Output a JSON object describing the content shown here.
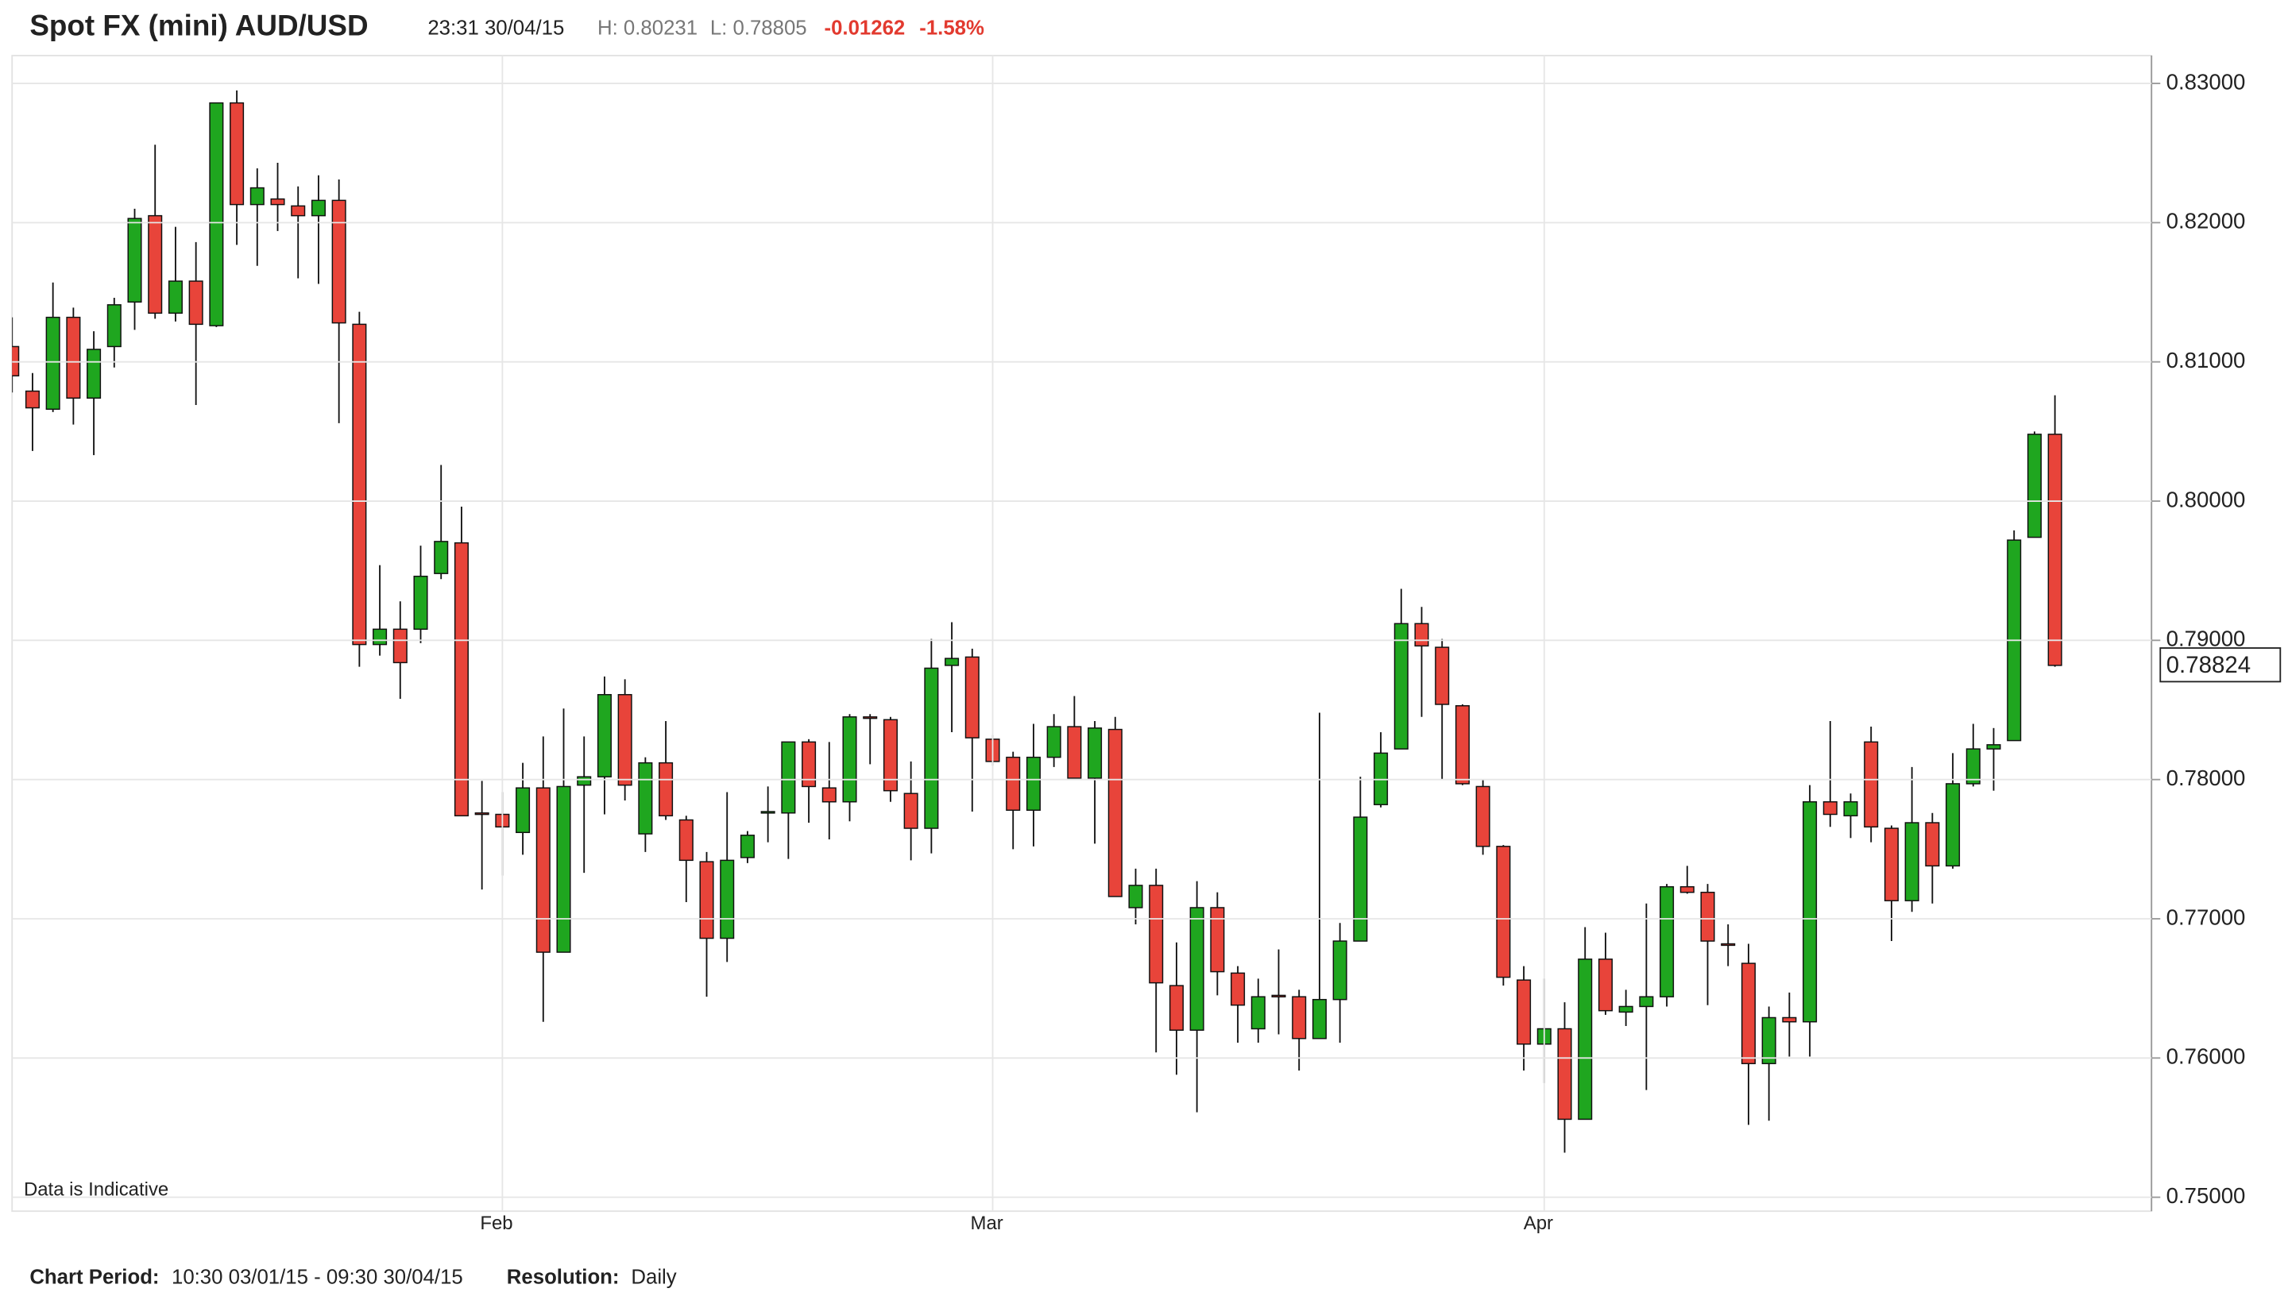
{
  "chart_data": {
    "type": "candlestick",
    "title": "Spot FX (mini) AUD/USD",
    "header": {
      "time": "23:31 30/04/15",
      "high": "H: 0.80231",
      "low": "L: 0.78805",
      "change": "-0.01262",
      "change_pct": "-1.58%"
    },
    "annotation": "Data is Indicative",
    "footer": {
      "period_label": "Chart Period:",
      "period": "10:30 03/01/15 - 09:30 30/04/15",
      "resolution_label": "Resolution:",
      "resolution": "Daily"
    },
    "categories": [
      null,
      null,
      null,
      null,
      null,
      null,
      null,
      null,
      null,
      null,
      null,
      null,
      null,
      null,
      null,
      null,
      null,
      null,
      null,
      null,
      null,
      null,
      null,
      null,
      "Feb",
      null,
      null,
      null,
      null,
      null,
      null,
      null,
      null,
      null,
      null,
      null,
      null,
      null,
      null,
      null,
      null,
      null,
      null,
      null,
      null,
      null,
      null,
      null,
      "Mar",
      null,
      null,
      null,
      null,
      null,
      null,
      null,
      null,
      null,
      null,
      null,
      null,
      null,
      null,
      null,
      null,
      null,
      null,
      null,
      null,
      null,
      null,
      null,
      null,
      null,
      null,
      "Apr",
      null,
      null,
      null,
      null,
      null,
      null,
      null,
      null,
      null,
      null,
      null,
      null,
      null,
      null,
      null,
      null,
      null,
      null,
      null,
      null,
      null,
      null,
      null,
      null,
      null
    ],
    "open": [
      0.8111,
      0.8079,
      0.8066,
      0.8132,
      0.8074,
      0.8111,
      0.8143,
      0.8205,
      0.8135,
      0.8158,
      0.8126,
      0.8286,
      0.8213,
      0.8217,
      0.8212,
      0.8205,
      0.8216,
      0.8127,
      0.7897,
      0.7908,
      0.7908,
      0.7948,
      0.797,
      0.7776,
      0.7775,
      0.7762,
      0.7794,
      0.7676,
      0.7796,
      0.7802,
      0.7861,
      0.7761,
      0.7812,
      0.7771,
      0.7741,
      0.7686,
      0.7744,
      0.7776,
      0.7776,
      0.7827,
      0.7794,
      0.7784,
      0.7845,
      0.7843,
      0.779,
      0.7765,
      0.7882,
      0.7888,
      0.7829,
      0.7816,
      0.7778,
      0.7816,
      0.7838,
      0.7801,
      0.7836,
      0.7708,
      0.7724,
      0.7652,
      0.762,
      0.7708,
      0.7661,
      0.7621,
      0.7645,
      0.7644,
      0.7614,
      0.7642,
      0.7684,
      0.7782,
      0.7822,
      0.7912,
      0.7895,
      0.7853,
      0.7795,
      0.7752,
      0.7656,
      0.761,
      0.7621,
      0.7556,
      0.7671,
      0.7633,
      0.7637,
      0.7644,
      0.7723,
      0.7719,
      0.7682,
      0.7668,
      0.7596,
      0.7629,
      0.7626,
      0.7784,
      0.7774,
      0.7827,
      0.7765,
      0.7713,
      0.7769,
      0.7738,
      0.7797,
      0.7822,
      0.7828,
      0.7974,
      0.8048
    ],
    "high": [
      0.8132,
      0.8092,
      0.8157,
      0.8139,
      0.8122,
      0.8146,
      0.821,
      0.8256,
      0.8197,
      0.8186,
      0.8286,
      0.8295,
      0.8239,
      0.8243,
      0.8226,
      0.8234,
      0.8231,
      0.8136,
      0.7954,
      0.7928,
      0.7968,
      0.8026,
      0.7996,
      0.7799,
      0.7791,
      0.7812,
      0.7831,
      0.7851,
      0.7831,
      0.7874,
      0.7872,
      0.7816,
      0.7842,
      0.7774,
      0.7748,
      0.7791,
      0.7763,
      0.7795,
      0.7827,
      0.7829,
      0.7827,
      0.7847,
      0.7847,
      0.7845,
      0.7813,
      0.7901,
      0.7913,
      0.7894,
      0.7832,
      0.782,
      0.784,
      0.7847,
      0.786,
      0.7842,
      0.7845,
      0.7736,
      0.7736,
      0.7683,
      0.7727,
      0.7719,
      0.7666,
      0.7657,
      0.7678,
      0.7649,
      0.7848,
      0.7697,
      0.7802,
      0.7834,
      0.7937,
      0.7924,
      0.7901,
      0.7854,
      0.78,
      0.7753,
      0.7666,
      0.7657,
      0.764,
      0.7694,
      0.769,
      0.7649,
      0.7711,
      0.7725,
      0.7738,
      0.7725,
      0.7696,
      0.7682,
      0.7637,
      0.7647,
      0.7796,
      0.7842,
      0.779,
      0.7838,
      0.7767,
      0.7809,
      0.7776,
      0.7819,
      0.784,
      0.7837,
      0.7979,
      0.805,
      0.8076
    ],
    "low": [
      0.8078,
      0.8036,
      0.8064,
      0.8055,
      0.8033,
      0.8096,
      0.8123,
      0.8131,
      0.8129,
      0.8069,
      0.8125,
      0.8184,
      0.8169,
      0.8194,
      0.816,
      0.8156,
      0.8056,
      0.7881,
      0.7889,
      0.7858,
      0.7898,
      0.7944,
      0.7774,
      0.7721,
      0.7731,
      0.7746,
      0.7626,
      0.7676,
      0.7733,
      0.7775,
      0.7785,
      0.7748,
      0.7771,
      0.7712,
      0.7644,
      0.7669,
      0.774,
      0.7755,
      0.7743,
      0.7769,
      0.7757,
      0.777,
      0.7811,
      0.7784,
      0.7742,
      0.7747,
      0.7834,
      0.7777,
      0.781,
      0.775,
      0.7752,
      0.7809,
      0.7801,
      0.7754,
      0.7716,
      0.7696,
      0.7604,
      0.7588,
      0.7561,
      0.7645,
      0.7611,
      0.7611,
      0.7617,
      0.7591,
      0.7614,
      0.7611,
      0.7684,
      0.778,
      0.7822,
      0.7845,
      0.78,
      0.7796,
      0.7746,
      0.7652,
      0.7591,
      0.7582,
      0.7532,
      0.7556,
      0.7631,
      0.7623,
      0.7577,
      0.7637,
      0.7718,
      0.7638,
      0.7666,
      0.7552,
      0.7555,
      0.7601,
      0.7601,
      0.7766,
      0.7758,
      0.7755,
      0.7684,
      0.7705,
      0.7711,
      0.7736,
      0.7795,
      0.7792,
      0.7828,
      0.7974,
      0.7881
    ],
    "close": [
      0.809,
      0.8067,
      0.8132,
      0.8074,
      0.8109,
      0.8141,
      0.8203,
      0.8135,
      0.8158,
      0.8127,
      0.8286,
      0.8213,
      0.8225,
      0.8213,
      0.8205,
      0.8216,
      0.8128,
      0.7897,
      0.7908,
      0.7884,
      0.7946,
      0.7971,
      0.7774,
      0.7775,
      0.7766,
      0.7794,
      0.7676,
      0.7795,
      0.7802,
      0.7861,
      0.7796,
      0.7812,
      0.7774,
      0.7742,
      0.7686,
      0.7742,
      0.776,
      0.7777,
      0.7827,
      0.7795,
      0.7784,
      0.7845,
      0.7844,
      0.7792,
      0.7765,
      0.788,
      0.7887,
      0.783,
      0.7813,
      0.7778,
      0.7816,
      0.7838,
      0.7801,
      0.7837,
      0.7716,
      0.7724,
      0.7654,
      0.762,
      0.7708,
      0.7662,
      0.7638,
      0.7644,
      0.7644,
      0.7614,
      0.7642,
      0.7684,
      0.7773,
      0.7819,
      0.7912,
      0.7896,
      0.7854,
      0.7797,
      0.7752,
      0.7658,
      0.761,
      0.7621,
      0.7556,
      0.7671,
      0.7634,
      0.7637,
      0.7644,
      0.7723,
      0.7719,
      0.7684,
      0.7681,
      0.7596,
      0.7629,
      0.7626,
      0.7784,
      0.7775,
      0.7784,
      0.7766,
      0.7713,
      0.7769,
      0.7738,
      0.7797,
      0.7822,
      0.7825,
      0.7972,
      0.8048,
      0.7882
    ],
    "up_color": "#1fa61f",
    "down_color": "#e8443a",
    "last_price": 0.78824,
    "ylim": [
      0.749,
      0.832
    ],
    "yticks": [
      {
        "value": 0.75,
        "label": "0.75000"
      },
      {
        "value": 0.76,
        "label": "0.76000"
      },
      {
        "value": 0.77,
        "label": "0.77000"
      },
      {
        "value": 0.78,
        "label": "0.78000"
      },
      {
        "value": 0.79,
        "label": "0.79000"
      },
      {
        "value": 0.8,
        "label": "0.80000"
      },
      {
        "value": 0.81,
        "label": "0.81000"
      },
      {
        "value": 0.82,
        "label": "0.82000"
      },
      {
        "value": 0.83,
        "label": "0.83000"
      }
    ],
    "grid": true
  }
}
